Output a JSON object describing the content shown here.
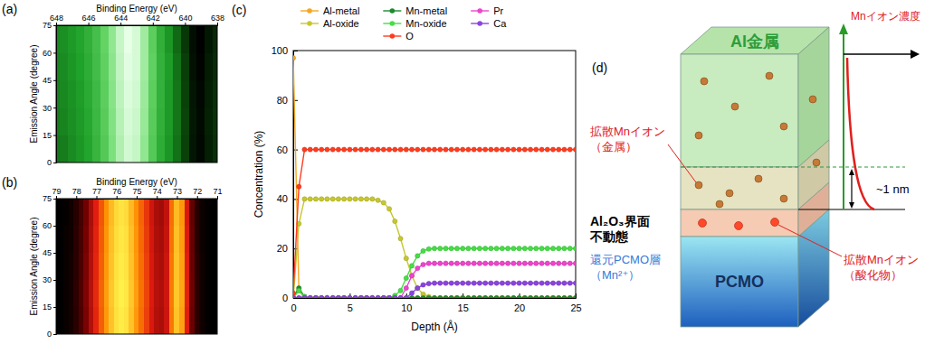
{
  "chart_data": [
    {
      "type": "heatmap",
      "panel_label": "(a)",
      "x_label": "Binding Energy (eV)",
      "y_label": "Emission Angle (degree)",
      "x": [
        648,
        647.5,
        647,
        646.5,
        646,
        645.5,
        645,
        644.5,
        644,
        643.5,
        643,
        642.5,
        642,
        641.5,
        641,
        640.5,
        640,
        639.5,
        639,
        638.5,
        638
      ],
      "y": [
        7.5,
        22.5,
        37.5,
        52.5,
        67.5
      ],
      "z": [
        [
          38,
          40,
          44,
          47,
          51,
          57,
          65,
          75,
          85,
          91,
          89,
          79,
          65,
          54,
          47,
          37,
          24,
          11,
          7,
          14,
          19
        ],
        [
          40,
          42,
          45,
          48,
          52,
          58,
          66,
          76,
          86,
          92,
          90,
          80,
          66,
          55,
          48,
          38,
          25,
          12,
          8,
          15,
          20
        ],
        [
          41,
          43,
          46,
          49,
          53,
          59,
          67,
          77,
          87,
          93,
          91,
          81,
          67,
          56,
          48,
          38,
          24,
          11,
          7,
          14,
          19
        ],
        [
          42,
          44,
          47,
          50,
          54,
          60,
          68,
          78,
          88,
          94,
          92,
          82,
          68,
          56,
          49,
          37,
          23,
          10,
          6,
          13,
          18
        ],
        [
          43,
          45,
          48,
          51,
          55,
          61,
          69,
          79,
          89,
          95,
          92,
          82,
          67,
          55,
          47,
          35,
          21,
          9,
          5,
          12,
          17
        ]
      ],
      "xlim": [
        648,
        638
      ],
      "xticks": [
        648,
        646,
        644,
        642,
        640,
        638
      ],
      "ylim": [
        0,
        75
      ],
      "yticks": [
        0,
        15,
        30,
        45,
        60,
        75
      ],
      "color": "green"
    },
    {
      "type": "heatmap",
      "panel_label": "(b)",
      "x_label": "Binding Energy (eV)",
      "y_label": "Emission Angle (degree)",
      "x": [
        79,
        78.75,
        78.5,
        78.25,
        78,
        77.75,
        77.5,
        77.25,
        77,
        76.75,
        76.5,
        76.25,
        76,
        75.75,
        75.5,
        75.25,
        75,
        74.75,
        74.5,
        74.25,
        74,
        73.75,
        73.5,
        73.25,
        73,
        72.75,
        72.5,
        72.25,
        72,
        71.75,
        71.5,
        71.25,
        71
      ],
      "y": [
        7.5,
        22.5,
        37.5,
        52.5,
        67.5
      ],
      "z": [
        [
          0,
          0,
          2,
          5,
          10,
          18,
          28,
          40,
          52,
          65,
          78,
          88,
          95,
          98,
          96,
          88,
          78,
          68,
          58,
          48,
          40,
          38,
          45,
          70,
          88,
          80,
          50,
          25,
          10,
          4,
          1,
          0,
          0
        ],
        [
          0,
          0,
          2,
          5,
          11,
          19,
          29,
          41,
          53,
          66,
          79,
          89,
          96,
          99,
          97,
          89,
          79,
          69,
          59,
          49,
          41,
          39,
          46,
          71,
          89,
          81,
          51,
          26,
          10,
          4,
          1,
          0,
          0
        ],
        [
          0,
          0,
          2,
          5,
          10,
          18,
          28,
          40,
          52,
          65,
          78,
          88,
          95,
          98,
          96,
          88,
          78,
          68,
          58,
          48,
          40,
          38,
          45,
          70,
          88,
          80,
          50,
          25,
          10,
          4,
          1,
          0,
          0
        ],
        [
          0,
          0,
          2,
          4,
          10,
          17,
          27,
          39,
          51,
          64,
          77,
          87,
          94,
          97,
          95,
          87,
          77,
          67,
          57,
          47,
          39,
          37,
          44,
          69,
          87,
          79,
          49,
          24,
          9,
          3,
          1,
          0,
          0
        ],
        [
          0,
          0,
          1,
          4,
          9,
          16,
          26,
          38,
          50,
          63,
          76,
          86,
          93,
          96,
          94,
          86,
          76,
          66,
          56,
          46,
          38,
          36,
          43,
          68,
          86,
          78,
          48,
          23,
          9,
          3,
          1,
          0,
          0
        ]
      ],
      "xlim": [
        79,
        71
      ],
      "xticks": [
        79,
        78,
        77,
        76,
        75,
        74,
        73,
        72,
        71
      ],
      "ylim": [
        0,
        75
      ],
      "yticks": [
        0,
        15,
        30,
        45,
        60,
        75
      ],
      "color": "hot"
    },
    {
      "type": "line",
      "panel_label": "(c)",
      "x_label": "Depth (Å)",
      "y_label": "Concentration (%)",
      "x": [
        0,
        0.5,
        1,
        1.5,
        2,
        2.5,
        3,
        3.5,
        4,
        4.5,
        5,
        5.5,
        6,
        6.5,
        7,
        7.5,
        8,
        8.5,
        9,
        9.5,
        10,
        10.5,
        11,
        11.5,
        12,
        12.5,
        13,
        13.5,
        14,
        14.5,
        15,
        15.5,
        16,
        16.5,
        17,
        17.5,
        18,
        18.5,
        19,
        19.5,
        20,
        20.5,
        21,
        21.5,
        22,
        22.5,
        23,
        23.5,
        24,
        24.5,
        25
      ],
      "series": [
        {
          "name": "Al-metal",
          "color": "#f5a623",
          "values": [
            97,
            3,
            0,
            0,
            0,
            0,
            0,
            0,
            0,
            0,
            0,
            0,
            0,
            0,
            0,
            0,
            0,
            0,
            0,
            0,
            0,
            0,
            0,
            0,
            0,
            0,
            0,
            0,
            0,
            0,
            0,
            0,
            0,
            0,
            0,
            0,
            0,
            0,
            0,
            0,
            0,
            0,
            0,
            0,
            0,
            0,
            0,
            0,
            0,
            0,
            0
          ]
        },
        {
          "name": "Al-oxide",
          "color": "#c6c72e",
          "values": [
            0,
            30,
            40,
            40,
            40,
            40,
            40,
            40,
            40,
            40,
            40,
            40,
            40,
            40,
            40,
            39.5,
            38.5,
            36,
            31,
            24,
            16,
            9,
            4,
            1.5,
            0.5,
            0,
            0,
            0,
            0,
            0,
            0,
            0,
            0,
            0,
            0,
            0,
            0,
            0,
            0,
            0,
            0,
            0,
            0,
            0,
            0,
            0,
            0,
            0,
            0,
            0,
            0
          ]
        },
        {
          "name": "Mn-metal",
          "color": "#1a8c2a",
          "values": [
            0,
            4,
            0.5,
            0,
            0,
            0,
            0,
            0,
            0,
            0,
            0,
            0,
            0,
            0,
            0,
            0,
            0,
            0,
            0,
            0,
            0,
            0,
            0,
            0,
            0,
            0,
            0,
            0,
            0,
            0,
            0,
            0,
            0,
            0,
            0,
            0,
            0,
            0,
            0,
            0,
            0,
            0,
            0,
            0,
            0,
            0,
            0,
            0,
            0,
            0,
            0
          ]
        },
        {
          "name": "Mn-oxide",
          "color": "#46dd46",
          "values": [
            0,
            3,
            0.5,
            0,
            0,
            0,
            0,
            0,
            0,
            0,
            0,
            0,
            0,
            0,
            0,
            0,
            0,
            0,
            1,
            3,
            8,
            13,
            17,
            19,
            19.8,
            20,
            20,
            20,
            20,
            20,
            20,
            20,
            20,
            20,
            20,
            20,
            20,
            20,
            20,
            20,
            20,
            20,
            20,
            20,
            20,
            20,
            20,
            20,
            20,
            20,
            20
          ]
        },
        {
          "name": "O",
          "color": "#ff3b1f",
          "values": [
            2,
            45,
            60,
            60,
            60,
            60,
            60,
            60,
            60,
            60,
            60,
            60,
            60,
            60,
            60,
            60,
            60,
            60,
            60,
            60,
            60,
            60,
            60,
            60,
            60,
            60,
            60,
            60,
            60,
            60,
            60,
            60,
            60,
            60,
            60,
            60,
            60,
            60,
            60,
            60,
            60,
            60,
            60,
            60,
            60,
            60,
            60,
            60,
            60,
            60,
            60
          ]
        },
        {
          "name": "Pr",
          "color": "#ee44cc",
          "values": [
            0,
            0,
            0,
            0,
            0,
            0,
            0,
            0,
            0,
            0,
            0,
            0,
            0,
            0,
            0,
            0,
            0,
            0,
            0,
            0,
            4,
            9,
            12,
            13.5,
            14,
            14,
            14,
            14,
            14,
            14,
            14,
            14,
            14,
            14,
            14,
            14,
            14,
            14,
            14,
            14,
            14,
            14,
            14,
            14,
            14,
            14,
            14,
            14,
            14,
            14,
            14
          ]
        },
        {
          "name": "Ca",
          "color": "#8a44dd",
          "values": [
            0,
            0,
            0,
            0,
            0,
            0,
            0,
            0,
            0,
            0,
            0,
            0,
            0,
            0,
            0,
            0,
            0,
            0,
            0,
            0,
            0,
            2,
            4,
            5.3,
            5.8,
            6,
            6,
            6,
            6,
            6,
            6,
            6,
            6,
            6,
            6,
            6,
            6,
            6,
            6,
            6,
            6,
            6,
            6,
            6,
            6,
            6,
            6,
            6,
            6,
            6,
            6
          ]
        }
      ],
      "xlim": [
        0,
        25
      ],
      "xticks": [
        0,
        5,
        10,
        15,
        20,
        25
      ],
      "ylim": [
        0,
        100
      ],
      "yticks": [
        0,
        20,
        40,
        60,
        80,
        100
      ],
      "marker": "circle",
      "legend": "top"
    }
  ],
  "diagram": {
    "panel_label": "(d)",
    "top_layer": "Al金属",
    "bottom_layer": "PCMO",
    "metal_ions": [
      "拡散Mnイオン",
      "（金属）"
    ],
    "interface": [
      "Al₂O₃界面",
      "不動態"
    ],
    "reduced_layer": [
      "還元PCMO層",
      "（Mn²⁺）"
    ],
    "oxide_ions": [
      "拡散Mnイオン",
      "（酸化物）"
    ],
    "profile_axis": "Mnイオン濃度",
    "thickness": "~1 nm"
  }
}
